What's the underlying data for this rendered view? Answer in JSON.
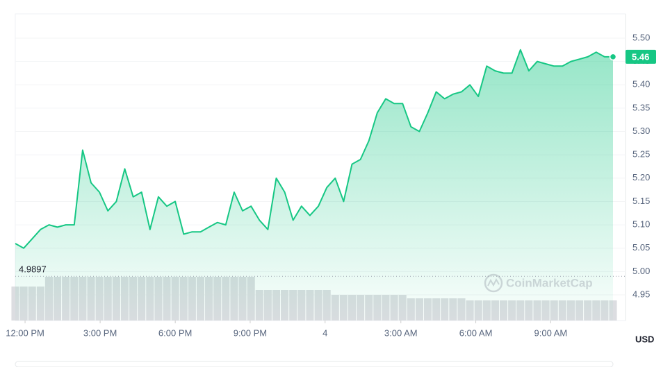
{
  "chart_data": {
    "type": "line",
    "color": "#16c784",
    "values": [
      5.06,
      5.05,
      5.07,
      5.09,
      5.1,
      5.095,
      5.1,
      5.1,
      5.26,
      5.19,
      5.17,
      5.13,
      5.15,
      5.22,
      5.16,
      5.17,
      5.09,
      5.16,
      5.14,
      5.15,
      5.08,
      5.085,
      5.085,
      5.095,
      5.105,
      5.1,
      5.17,
      5.13,
      5.14,
      5.11,
      5.09,
      5.2,
      5.17,
      5.11,
      5.14,
      5.12,
      5.14,
      5.18,
      5.2,
      5.15,
      5.23,
      5.24,
      5.28,
      5.34,
      5.37,
      5.36,
      5.36,
      5.31,
      5.3,
      5.34,
      5.385,
      5.37,
      5.38,
      5.385,
      5.4,
      5.375,
      5.44,
      5.43,
      5.425,
      5.425,
      5.475,
      5.43,
      5.45,
      5.445,
      5.44,
      5.44,
      5.45,
      5.455,
      5.46,
      5.47,
      5.46,
      5.46
    ],
    "volume": [
      49,
      49,
      49,
      49,
      63,
      63,
      63,
      63,
      63,
      63,
      63,
      63,
      63,
      63,
      63,
      63,
      63,
      63,
      63,
      63,
      63,
      63,
      63,
      63,
      63,
      63,
      63,
      63,
      63,
      44,
      44,
      44,
      44,
      44,
      44,
      44,
      44,
      44,
      37,
      37,
      37,
      37,
      37,
      37,
      37,
      37,
      37,
      32,
      32,
      32,
      32,
      32,
      32,
      32,
      29,
      29,
      29,
      29,
      29,
      29,
      29,
      29,
      29,
      29,
      29,
      29,
      29,
      29,
      29,
      29,
      29,
      29
    ],
    "ylim": [
      4.895,
      5.552
    ],
    "yticks": [
      4.95,
      {
        "value": 5.0,
        "label": "5.00"
      },
      5.05,
      {
        "value": 5.1,
        "label": "5.10"
      },
      5.15,
      {
        "value": 5.2,
        "label": "5.20"
      },
      5.25,
      {
        "value": 5.3,
        "label": "5.30"
      },
      5.35,
      {
        "value": 5.4,
        "label": "5.40"
      },
      5.45,
      {
        "value": 5.5,
        "label": "5.50"
      }
    ],
    "xlim": [
      0,
      71
    ],
    "xticks": [
      {
        "value": 1.16,
        "label": "12:00 PM"
      },
      {
        "value": 10.08,
        "label": "3:00 PM"
      },
      {
        "value": 19.0,
        "label": "6:00 PM"
      },
      {
        "value": 27.9,
        "label": "9:00 PM"
      },
      {
        "value": 36.8,
        "label": "4"
      },
      {
        "value": 45.8,
        "label": "3:00 AM"
      },
      {
        "value": 54.7,
        "label": "6:00 AM"
      },
      {
        "value": 63.6,
        "label": "9:00 AM"
      }
    ],
    "reference": 4.9897,
    "current_price": 5.46,
    "grid": true,
    "watermark": "CoinMarketCap",
    "currency": "USD"
  }
}
